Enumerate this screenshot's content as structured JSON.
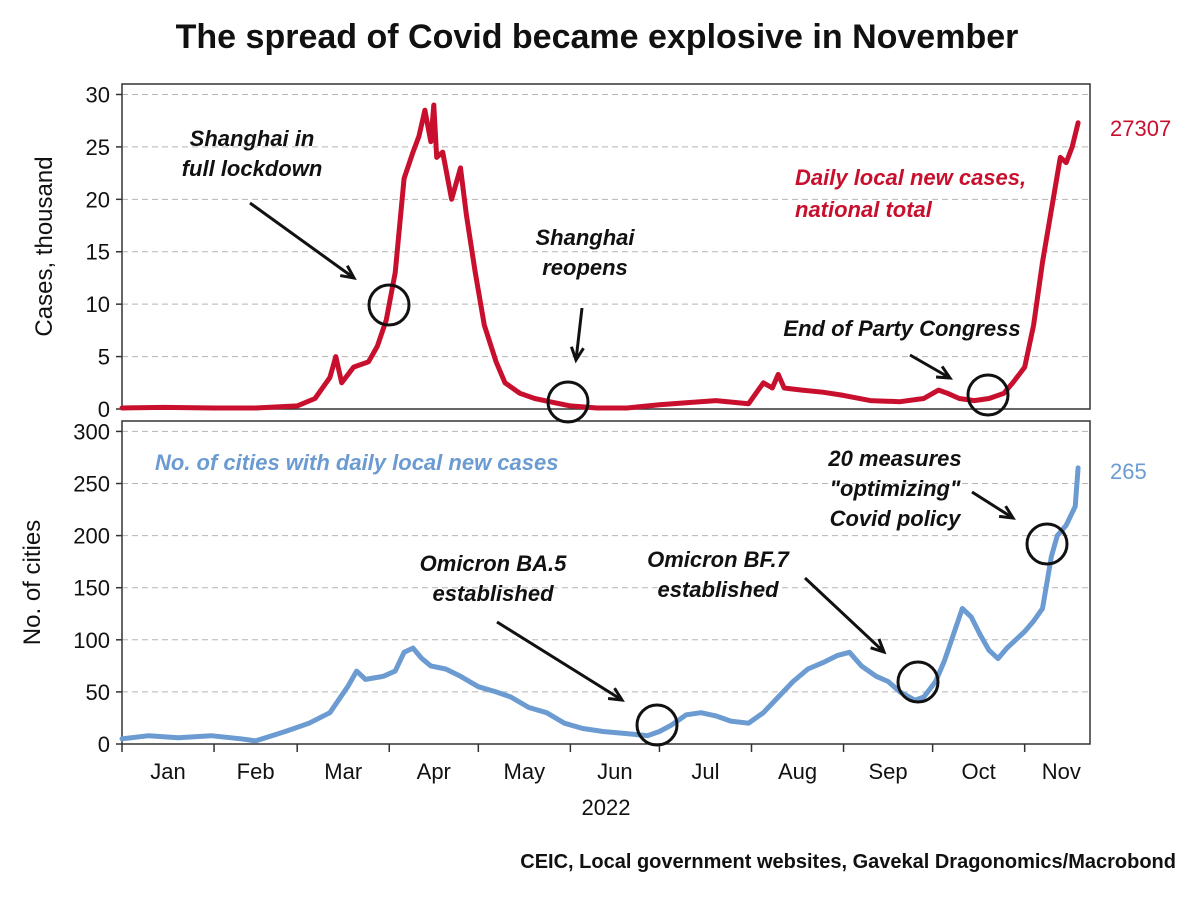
{
  "chart_data": [
    {
      "type": "line",
      "title": "The spread of Covid became explosive in November",
      "ylabel": "Cases, thousand",
      "ylim": [
        0,
        31
      ],
      "yticks": [
        0,
        5,
        10,
        15,
        20,
        25,
        30
      ],
      "grid": true,
      "color": "#c8102e",
      "series": [
        {
          "name": "Daily local new cases, national total",
          "last_value_label": "27307",
          "points": [
            [
              "2022-01-01",
              0.1
            ],
            [
              "2022-01-15",
              0.15
            ],
            [
              "2022-02-01",
              0.1
            ],
            [
              "2022-02-15",
              0.1
            ],
            [
              "2022-03-01",
              0.3
            ],
            [
              "2022-03-07",
              1.0
            ],
            [
              "2022-03-12",
              3.0
            ],
            [
              "2022-03-14",
              5.0
            ],
            [
              "2022-03-16",
              2.5
            ],
            [
              "2022-03-20",
              4.0
            ],
            [
              "2022-03-25",
              4.5
            ],
            [
              "2022-03-28",
              6.0
            ],
            [
              "2022-03-31",
              8.5
            ],
            [
              "2022-04-03",
              13.0
            ],
            [
              "2022-04-06",
              22.0
            ],
            [
              "2022-04-09",
              24.5
            ],
            [
              "2022-04-11",
              26.0
            ],
            [
              "2022-04-13",
              28.5
            ],
            [
              "2022-04-15",
              25.5
            ],
            [
              "2022-04-16",
              29.0
            ],
            [
              "2022-04-17",
              24.0
            ],
            [
              "2022-04-19",
              24.5
            ],
            [
              "2022-04-22",
              20.0
            ],
            [
              "2022-04-25",
              23.0
            ],
            [
              "2022-04-27",
              18.5
            ],
            [
              "2022-04-30",
              13.0
            ],
            [
              "2022-05-03",
              8.0
            ],
            [
              "2022-05-07",
              4.5
            ],
            [
              "2022-05-10",
              2.5
            ],
            [
              "2022-05-15",
              1.5
            ],
            [
              "2022-05-20",
              1.0
            ],
            [
              "2022-05-25",
              0.7
            ],
            [
              "2022-06-01",
              0.3
            ],
            [
              "2022-06-10",
              0.1
            ],
            [
              "2022-06-20",
              0.1
            ],
            [
              "2022-07-01",
              0.4
            ],
            [
              "2022-07-10",
              0.6
            ],
            [
              "2022-07-20",
              0.8
            ],
            [
              "2022-07-31",
              0.5
            ],
            [
              "2022-08-05",
              2.5
            ],
            [
              "2022-08-08",
              2.0
            ],
            [
              "2022-08-10",
              3.3
            ],
            [
              "2022-08-12",
              2.0
            ],
            [
              "2022-08-18",
              1.8
            ],
            [
              "2022-08-25",
              1.6
            ],
            [
              "2022-09-01",
              1.3
            ],
            [
              "2022-09-10",
              0.8
            ],
            [
              "2022-09-20",
              0.7
            ],
            [
              "2022-09-28",
              1.0
            ],
            [
              "2022-10-03",
              1.8
            ],
            [
              "2022-10-06",
              1.5
            ],
            [
              "2022-10-10",
              1.0
            ],
            [
              "2022-10-15",
              0.8
            ],
            [
              "2022-10-20",
              1.0
            ],
            [
              "2022-10-25",
              1.5
            ],
            [
              "2022-10-28",
              2.5
            ],
            [
              "2022-11-01",
              4.0
            ],
            [
              "2022-11-04",
              8.0
            ],
            [
              "2022-11-07",
              14.0
            ],
            [
              "2022-11-10",
              19.0
            ],
            [
              "2022-11-13",
              24.0
            ],
            [
              "2022-11-15",
              23.5
            ],
            [
              "2022-11-17",
              25.0
            ],
            [
              "2022-11-19",
              27.3
            ]
          ]
        }
      ],
      "annotations": [
        {
          "text": [
            "Shanghai in",
            "full lockdown"
          ]
        },
        {
          "text": [
            "Shanghai",
            "reopens"
          ]
        },
        {
          "text": [
            "End of Party Congress"
          ]
        }
      ],
      "series_label": [
        "Daily local new cases,",
        "national total"
      ]
    },
    {
      "type": "line",
      "ylabel": "No. of cities",
      "ylim": [
        0,
        310
      ],
      "yticks": [
        0,
        50,
        100,
        150,
        200,
        250,
        300
      ],
      "grid": true,
      "color": "#6b9bd1",
      "categories": [
        "Jan",
        "Feb",
        "Mar",
        "Apr",
        "May",
        "Jun",
        "Jul",
        "Aug",
        "Sep",
        "Oct",
        "Nov"
      ],
      "xlabel": "2022",
      "series": [
        {
          "name": "No. of cities with daily local new cases",
          "last_value_label": "265",
          "points": [
            [
              "2022-01-01",
              5
            ],
            [
              "2022-01-10",
              8
            ],
            [
              "2022-01-20",
              6
            ],
            [
              "2022-01-31",
              8
            ],
            [
              "2022-02-10",
              5
            ],
            [
              "2022-02-15",
              3
            ],
            [
              "2022-02-25",
              12
            ],
            [
              "2022-03-05",
              20
            ],
            [
              "2022-03-12",
              30
            ],
            [
              "2022-03-18",
              55
            ],
            [
              "2022-03-21",
              70
            ],
            [
              "2022-03-24",
              62
            ],
            [
              "2022-03-30",
              65
            ],
            [
              "2022-04-03",
              70
            ],
            [
              "2022-04-06",
              88
            ],
            [
              "2022-04-09",
              92
            ],
            [
              "2022-04-12",
              82
            ],
            [
              "2022-04-15",
              75
            ],
            [
              "2022-04-20",
              72
            ],
            [
              "2022-04-25",
              65
            ],
            [
              "2022-05-01",
              55
            ],
            [
              "2022-05-07",
              50
            ],
            [
              "2022-05-12",
              45
            ],
            [
              "2022-05-18",
              35
            ],
            [
              "2022-05-24",
              30
            ],
            [
              "2022-05-30",
              20
            ],
            [
              "2022-06-05",
              15
            ],
            [
              "2022-06-12",
              12
            ],
            [
              "2022-06-20",
              10
            ],
            [
              "2022-06-27",
              8
            ],
            [
              "2022-07-01",
              12
            ],
            [
              "2022-07-05",
              18
            ],
            [
              "2022-07-10",
              28
            ],
            [
              "2022-07-15",
              30
            ],
            [
              "2022-07-20",
              27
            ],
            [
              "2022-07-25",
              22
            ],
            [
              "2022-07-31",
              20
            ],
            [
              "2022-08-05",
              30
            ],
            [
              "2022-08-10",
              45
            ],
            [
              "2022-08-15",
              60
            ],
            [
              "2022-08-20",
              72
            ],
            [
              "2022-08-25",
              78
            ],
            [
              "2022-08-30",
              85
            ],
            [
              "2022-09-03",
              88
            ],
            [
              "2022-09-07",
              75
            ],
            [
              "2022-09-12",
              65
            ],
            [
              "2022-09-16",
              60
            ],
            [
              "2022-09-20",
              50
            ],
            [
              "2022-09-25",
              42
            ],
            [
              "2022-09-28",
              45
            ],
            [
              "2022-10-02",
              60
            ],
            [
              "2022-10-05",
              80
            ],
            [
              "2022-10-08",
              105
            ],
            [
              "2022-10-11",
              130
            ],
            [
              "2022-10-14",
              122
            ],
            [
              "2022-10-17",
              105
            ],
            [
              "2022-10-20",
              90
            ],
            [
              "2022-10-23",
              82
            ],
            [
              "2022-10-26",
              92
            ],
            [
              "2022-10-29",
              100
            ],
            [
              "2022-11-01",
              108
            ],
            [
              "2022-11-04",
              118
            ],
            [
              "2022-11-07",
              130
            ],
            [
              "2022-11-10",
              180
            ],
            [
              "2022-11-12",
              200
            ],
            [
              "2022-11-15",
              210
            ],
            [
              "2022-11-18",
              228
            ],
            [
              "2022-11-19",
              265
            ]
          ]
        }
      ],
      "annotations": [
        {
          "text": [
            "Omicron BA.5",
            "established"
          ]
        },
        {
          "text": [
            "Omicron BF.7",
            "established"
          ]
        },
        {
          "text": [
            "20 measures",
            "\"optimizing\"",
            "Covid policy"
          ]
        }
      ]
    }
  ],
  "source": "CEIC, Local government websites, Gavekal Dragonomics/Macrobond"
}
